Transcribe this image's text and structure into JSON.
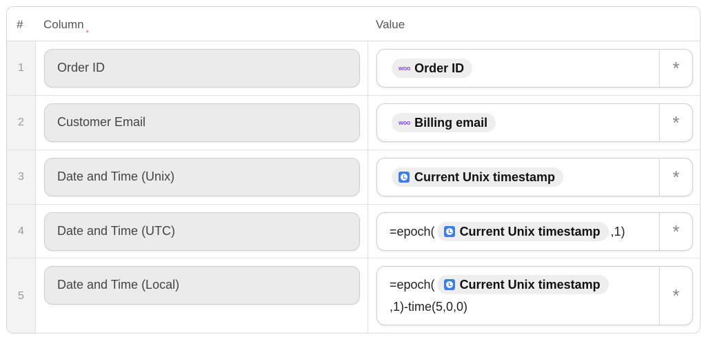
{
  "header": {
    "num": "#",
    "column": "Column",
    "required_mark": "*",
    "value": "Value"
  },
  "rows": [
    {
      "num": "1",
      "column": "Order ID",
      "value": {
        "pre": "",
        "chip": "Order ID",
        "chip_icon": "woo-icon",
        "post": ""
      }
    },
    {
      "num": "2",
      "column": "Customer Email",
      "value": {
        "pre": "",
        "chip": "Billing email",
        "chip_icon": "woo-icon",
        "post": ""
      }
    },
    {
      "num": "3",
      "column": "Date and Time (Unix)",
      "value": {
        "pre": "",
        "chip": "Current Unix timestamp",
        "chip_icon": "clock-icon",
        "post": ""
      }
    },
    {
      "num": "4",
      "column": "Date and Time (UTC)",
      "value": {
        "pre": "=epoch(",
        "chip": "Current Unix timestamp",
        "chip_icon": "clock-icon",
        "post": ",1)"
      }
    },
    {
      "num": "5",
      "column": "Date and Time (Local)",
      "value": {
        "pre": "=epoch(",
        "chip": "Current Unix timestamp",
        "chip_icon": "clock-icon",
        "post": ",1)-time(5,0,0)"
      }
    }
  ],
  "woo_label": "woo",
  "asterisk": "*",
  "colors": {
    "woo": "#8a4fe8",
    "clock": "#3d7ee8",
    "required": "#e55555"
  }
}
